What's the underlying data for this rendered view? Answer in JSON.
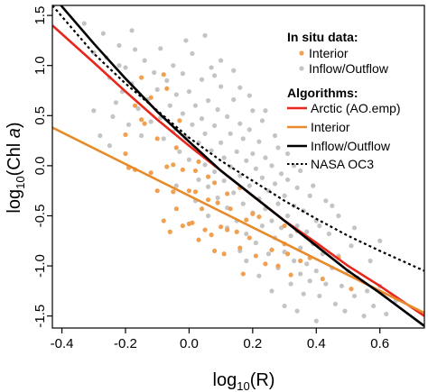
{
  "chart_data": {
    "type": "scatter",
    "title": "",
    "xlabel": {
      "base": "log",
      "sub": "10",
      "text": "(R)"
    },
    "ylabel": {
      "base": "log",
      "sub": "10",
      "text": "(Chl ",
      "italic": "a",
      "close": ")"
    },
    "xlim": [
      -0.43,
      0.74
    ],
    "ylim": [
      -1.62,
      1.6
    ],
    "x_ticks": [
      -0.4,
      -0.2,
      0.0,
      0.2,
      0.4,
      0.6
    ],
    "x_tick_labels": [
      "-0.4",
      "-0.2",
      "0.0",
      "0.2",
      "0.4",
      "0.6"
    ],
    "y_ticks": [
      -1.5,
      -1.0,
      -0.5,
      0.0,
      0.5,
      1.0,
      1.5
    ],
    "y_tick_labels": [
      "-1.5",
      "-1.0",
      "-0.5",
      "0.0",
      "0.5",
      "1.0",
      "1.5"
    ],
    "grid": false,
    "legend_position": "top-right",
    "legend": {
      "points_title": "In situ data:",
      "points": [
        {
          "label": "Interior",
          "color": "#f0a050"
        },
        {
          "label": "Inflow/Outflow",
          "color": "#c4c4c4"
        }
      ],
      "lines_title": "Algorithms:",
      "lines": [
        {
          "label": "Arctic (AO.emp)",
          "color": "#e8261b",
          "dash": "solid"
        },
        {
          "label": "Interior",
          "color": "#e88a2a",
          "dash": "solid"
        },
        {
          "label": "Inflow/Outflow",
          "color": "#000000",
          "dash": "solid"
        },
        {
          "label": "NASA OC3",
          "color": "#000000",
          "dash": "dotted"
        }
      ]
    },
    "series_lines": [
      {
        "name": "Arctic (AO.emp)",
        "color": "#e8261b",
        "dash": "solid",
        "x": [
          -0.43,
          -0.3,
          -0.2,
          -0.1,
          0.0,
          0.1,
          0.2,
          0.3,
          0.4,
          0.5,
          0.6,
          0.74
        ],
        "y": [
          1.4,
          1.03,
          0.74,
          0.46,
          0.2,
          -0.05,
          -0.3,
          -0.55,
          -0.77,
          -1.0,
          -1.2,
          -1.5
        ]
      },
      {
        "name": "Interior",
        "color": "#e88a2a",
        "dash": "solid",
        "x": [
          -0.43,
          0.74
        ],
        "y": [
          0.38,
          -1.47
        ]
      },
      {
        "name": "Inflow/Outflow",
        "color": "#000000",
        "dash": "solid",
        "x": [
          -0.43,
          -0.3,
          -0.2,
          -0.1,
          0.0,
          0.1,
          0.2,
          0.3,
          0.4,
          0.5,
          0.6,
          0.74
        ],
        "y": [
          1.7,
          1.22,
          0.87,
          0.54,
          0.24,
          -0.05,
          -0.3,
          -0.55,
          -0.8,
          -1.05,
          -1.27,
          -1.6
        ]
      },
      {
        "name": "NASA OC3",
        "color": "#000000",
        "dash": "dotted",
        "x": [
          -0.43,
          -0.3,
          -0.2,
          -0.1,
          0.0,
          0.1,
          0.2,
          0.3,
          0.4,
          0.5,
          0.6,
          0.74
        ],
        "y": [
          1.6,
          1.12,
          0.82,
          0.55,
          0.28,
          0.05,
          -0.15,
          -0.35,
          -0.53,
          -0.7,
          -0.85,
          -1.05
        ]
      }
    ],
    "points_interior": [
      [
        -0.2,
        0.31
      ],
      [
        -0.2,
        0.12
      ],
      [
        -0.17,
        -0.04
      ],
      [
        -0.15,
        0.46
      ],
      [
        -0.14,
        0.42
      ],
      [
        -0.12,
        -0.07
      ],
      [
        -0.1,
        -0.25
      ],
      [
        -0.1,
        0.27
      ],
      [
        -0.08,
        -0.55
      ],
      [
        -0.07,
        -0.01
      ],
      [
        -0.06,
        -0.66
      ],
      [
        -0.05,
        0.01
      ],
      [
        -0.05,
        -0.26
      ],
      [
        -0.04,
        -0.43
      ],
      [
        -0.03,
        0.45
      ],
      [
        -0.02,
        -0.04
      ],
      [
        -0.02,
        -0.6
      ],
      [
        0.0,
        -0.58
      ],
      [
        0.0,
        -0.25
      ],
      [
        0.01,
        -0.57
      ],
      [
        0.02,
        -0.05
      ],
      [
        0.03,
        -0.74
      ],
      [
        0.03,
        0.04
      ],
      [
        0.04,
        -0.43
      ],
      [
        0.05,
        -0.64
      ],
      [
        0.06,
        -0.34
      ],
      [
        0.06,
        -0.11
      ],
      [
        0.07,
        -0.69
      ],
      [
        0.08,
        -0.17
      ],
      [
        0.09,
        -0.37
      ],
      [
        0.1,
        -0.61
      ],
      [
        0.11,
        -0.88
      ],
      [
        0.12,
        -0.64
      ],
      [
        0.12,
        -0.28
      ],
      [
        0.13,
        -0.43
      ],
      [
        0.15,
        -0.66
      ],
      [
        0.16,
        -0.82
      ],
      [
        0.17,
        -1.08
      ],
      [
        0.18,
        -0.54
      ],
      [
        0.19,
        -0.72
      ],
      [
        0.21,
        -0.9
      ],
      [
        0.22,
        -0.51
      ],
      [
        0.24,
        -0.98
      ],
      [
        0.26,
        -0.84
      ],
      [
        0.28,
        -1.0
      ],
      [
        0.3,
        -0.78
      ],
      [
        0.31,
        -0.88
      ],
      [
        0.32,
        -1.09
      ],
      [
        0.34,
        -0.65
      ],
      [
        0.35,
        -0.95
      ],
      [
        0.38,
        -0.92
      ],
      [
        0.42,
        -1.13
      ],
      [
        0.47,
        -0.92
      ],
      [
        0.51,
        -1.23
      ],
      [
        -0.15,
        0.88
      ],
      [
        -0.12,
        0.68
      ],
      [
        -0.08,
        0.91
      ],
      [
        -0.07,
        0.77
      ],
      [
        -0.17,
        0.6
      ],
      [
        0.2,
        -0.48
      ],
      [
        0.16,
        -0.22
      ],
      [
        -0.19,
        -0.02
      ],
      [
        -0.04,
        0.18
      ],
      [
        0.02,
        -0.26
      ],
      [
        0.08,
        -0.85
      ],
      [
        0.3,
        -0.6
      ]
    ],
    "points_inflow_outflow": [
      [
        -0.33,
        1.42
      ],
      [
        -0.3,
        1.13
      ],
      [
        -0.27,
        1.32
      ],
      [
        -0.26,
        1.08
      ],
      [
        -0.25,
        0.88
      ],
      [
        -0.24,
        0.49
      ],
      [
        -0.23,
        0.63
      ],
      [
        -0.22,
        1.2
      ],
      [
        -0.21,
        0.74
      ],
      [
        -0.2,
        0.98
      ],
      [
        -0.19,
        0.41
      ],
      [
        -0.18,
        0.82
      ],
      [
        -0.17,
        1.16
      ],
      [
        -0.16,
        0.57
      ],
      [
        -0.15,
        0.3
      ],
      [
        -0.14,
        1.05
      ],
      [
        -0.13,
        0.66
      ],
      [
        -0.12,
        0.44
      ],
      [
        -0.11,
        0.93
      ],
      [
        -0.1,
        0.76
      ],
      [
        -0.09,
        1.17
      ],
      [
        -0.09,
        0.48
      ],
      [
        -0.08,
        0.27
      ],
      [
        -0.07,
        0.85
      ],
      [
        -0.06,
        0.6
      ],
      [
        -0.05,
        1.0
      ],
      [
        -0.05,
        0.34
      ],
      [
        -0.04,
        0.71
      ],
      [
        -0.03,
        0.14
      ],
      [
        -0.02,
        0.92
      ],
      [
        -0.02,
        0.52
      ],
      [
        -0.01,
        0.28
      ],
      [
        0.0,
        0.74
      ],
      [
        0.0,
        0.06
      ],
      [
        0.01,
        1.12
      ],
      [
        0.01,
        0.41
      ],
      [
        0.02,
        0.6
      ],
      [
        0.03,
        0.23
      ],
      [
        0.03,
        -0.14
      ],
      [
        0.04,
        0.86
      ],
      [
        0.04,
        0.47
      ],
      [
        0.05,
        0.01
      ],
      [
        0.05,
        0.32
      ],
      [
        0.06,
        0.65
      ],
      [
        0.06,
        -0.21
      ],
      [
        0.07,
        0.98
      ],
      [
        0.07,
        0.15
      ],
      [
        0.08,
        0.4
      ],
      [
        0.08,
        -0.06
      ],
      [
        0.09,
        0.56
      ],
      [
        0.09,
        -0.32
      ],
      [
        0.1,
        0.23
      ],
      [
        0.1,
        0.79
      ],
      [
        0.11,
        -0.15
      ],
      [
        0.11,
        0.08
      ],
      [
        0.12,
        0.49
      ],
      [
        0.12,
        -0.42
      ],
      [
        0.13,
        0.32
      ],
      [
        0.13,
        -0.01
      ],
      [
        0.14,
        0.66
      ],
      [
        0.14,
        -0.27
      ],
      [
        0.15,
        0.14
      ],
      [
        0.15,
        -0.55
      ],
      [
        0.16,
        0.42
      ],
      [
        0.16,
        -0.1
      ],
      [
        0.17,
        -0.38
      ],
      [
        0.17,
        0.27
      ],
      [
        0.18,
        0.05
      ],
      [
        0.18,
        -0.68
      ],
      [
        0.19,
        -0.2
      ],
      [
        0.19,
        0.36
      ],
      [
        0.2,
        -0.47
      ],
      [
        0.2,
        0.12
      ],
      [
        0.21,
        -0.03
      ],
      [
        0.21,
        -0.77
      ],
      [
        0.22,
        -0.33
      ],
      [
        0.22,
        0.24
      ],
      [
        0.23,
        -0.6
      ],
      [
        0.23,
        -0.12
      ],
      [
        0.24,
        0.08
      ],
      [
        0.24,
        -0.43
      ],
      [
        0.25,
        -0.88
      ],
      [
        0.25,
        -0.25
      ],
      [
        0.26,
        0.0
      ],
      [
        0.26,
        -0.55
      ],
      [
        0.27,
        -0.72
      ],
      [
        0.27,
        -0.18
      ],
      [
        0.28,
        -0.38
      ],
      [
        0.28,
        -1.02
      ],
      [
        0.29,
        -0.08
      ],
      [
        0.29,
        -0.62
      ],
      [
        0.3,
        -0.3
      ],
      [
        0.3,
        -0.86
      ],
      [
        0.31,
        -0.5
      ],
      [
        0.31,
        -0.14
      ],
      [
        0.32,
        -0.7
      ],
      [
        0.32,
        -1.18
      ],
      [
        0.33,
        -0.4
      ],
      [
        0.33,
        -0.95
      ],
      [
        0.34,
        -0.22
      ],
      [
        0.34,
        -0.6
      ],
      [
        0.35,
        -1.08
      ],
      [
        0.35,
        -0.82
      ],
      [
        0.36,
        -0.45
      ],
      [
        0.36,
        -1.28
      ],
      [
        0.37,
        -0.66
      ],
      [
        0.37,
        -0.98
      ],
      [
        0.38,
        -0.3
      ],
      [
        0.38,
        -1.15
      ],
      [
        0.39,
        -0.78
      ],
      [
        0.4,
        -1.05
      ],
      [
        0.4,
        -0.55
      ],
      [
        0.41,
        -1.3
      ],
      [
        0.42,
        -0.88
      ],
      [
        0.43,
        -1.18
      ],
      [
        0.44,
        -0.68
      ],
      [
        0.45,
        -1.02
      ],
      [
        0.46,
        -1.38
      ],
      [
        0.47,
        -0.9
      ],
      [
        0.48,
        -1.2
      ],
      [
        0.49,
        -1.45
      ],
      [
        0.5,
        -1.05
      ],
      [
        0.51,
        -0.8
      ],
      [
        0.52,
        -1.3
      ],
      [
        0.53,
        -1.12
      ],
      [
        0.55,
        -1.5
      ],
      [
        0.56,
        -1.25
      ],
      [
        0.58,
        -1.4
      ],
      [
        0.6,
        -1.2
      ],
      [
        0.62,
        -1.48
      ],
      [
        0.65,
        -1.35
      ],
      [
        0.14,
        0.95
      ],
      [
        0.19,
        0.7
      ],
      [
        0.23,
        0.45
      ],
      [
        0.27,
        0.3
      ],
      [
        0.31,
        0.12
      ],
      [
        0.35,
        -0.05
      ],
      [
        0.39,
        -0.2
      ],
      [
        0.43,
        -0.35
      ],
      [
        0.47,
        -0.5
      ],
      [
        0.05,
        1.3
      ],
      [
        0.1,
        1.05
      ],
      [
        -0.01,
        1.25
      ],
      [
        0.2,
        0.55
      ],
      [
        0.28,
        0.18
      ],
      [
        0.08,
        0.9
      ],
      [
        0.16,
        0.78
      ],
      [
        0.24,
        0.55
      ],
      [
        0.33,
        0.0
      ],
      [
        0.41,
        -0.6
      ],
      [
        0.45,
        -0.4
      ],
      [
        0.52,
        -0.62
      ],
      [
        0.57,
        -0.95
      ],
      [
        0.6,
        -0.75
      ],
      [
        0.12,
        -0.62
      ],
      [
        0.18,
        -0.95
      ],
      [
        0.22,
        -1.1
      ],
      [
        0.26,
        -1.25
      ],
      [
        0.3,
        -1.4
      ],
      [
        0.34,
        -1.45
      ],
      [
        0.4,
        -1.55
      ],
      [
        0.16,
        -0.85
      ],
      [
        0.06,
        -0.5
      ],
      [
        0.02,
        -0.35
      ],
      [
        -0.04,
        -0.2
      ],
      [
        -0.28,
        0.3
      ],
      [
        -0.25,
        0.2
      ],
      [
        -0.3,
        0.55
      ],
      [
        -0.18,
        1.35
      ],
      [
        -0.22,
        1.0
      ]
    ]
  }
}
